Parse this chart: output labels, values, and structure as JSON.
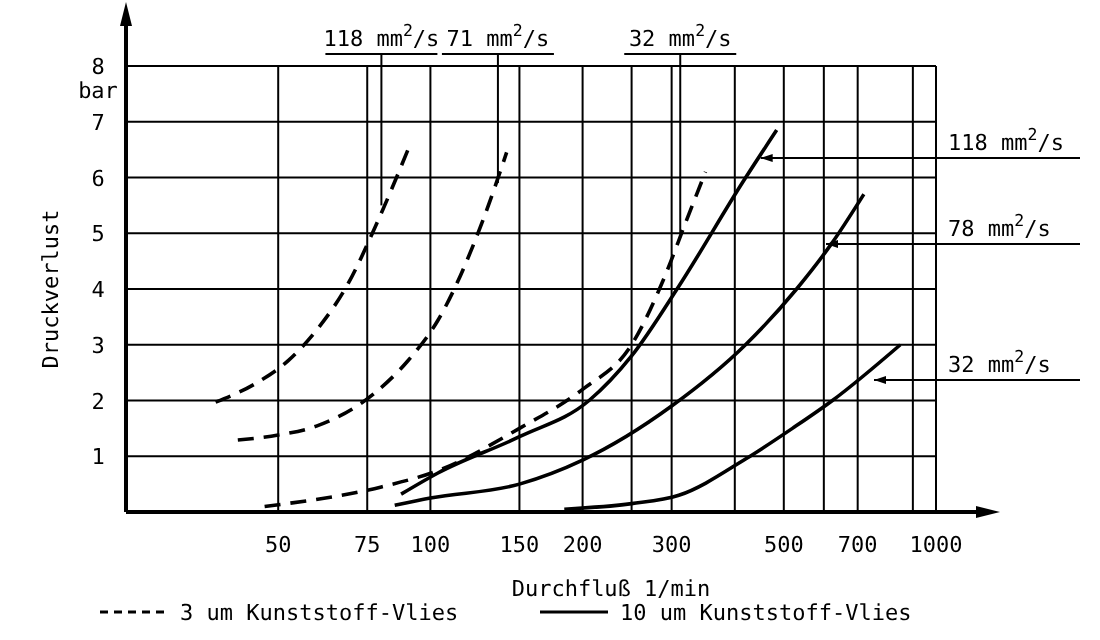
{
  "chart_data": {
    "type": "line",
    "xlabel": "Durchfluß 1/min",
    "ylabel": "Druckverlust",
    "log": "x",
    "grid": true,
    "legend": "bottom",
    "marker": "none",
    "xlim": [
      25,
      1000
    ],
    "ylim": [
      0,
      8
    ],
    "xticks": [
      50,
      75,
      100,
      150,
      200,
      {
        "value": 250,
        "label": null
      },
      300,
      {
        "value": 400,
        "label": null
      },
      500,
      {
        "value": 600,
        "label": null
      },
      700,
      {
        "value": 900,
        "label": null
      },
      1000
    ],
    "yticks": [
      1,
      2,
      3,
      4,
      5,
      6,
      7,
      {
        "value": 8,
        "label": "8 bar"
      }
    ],
    "series": [
      {
        "name": "3 um Kunststoff-Vlies",
        "color": "#000000",
        "line_style": "dashed",
        "x": [
          37.6,
          45,
          52.4,
          60,
          68.3,
          78.8,
          90.5
        ],
        "values": [
          1.97,
          2.3,
          2.72,
          3.3,
          4.05,
          5.23,
          6.52
        ]
      },
      {
        "color": "#000000",
        "line_style": "dashed",
        "x": [
          41.6,
          50,
          59.5,
          77,
          90,
          103.5,
          127,
          141.5
        ],
        "values": [
          1.29,
          1.38,
          1.54,
          2.11,
          2.7,
          3.44,
          5.23,
          6.45
        ]
      },
      {
        "color": "#000000",
        "line_style": "dashed",
        "x": [
          47,
          80,
          104,
          150,
          200,
          250,
          290,
          320,
          350
        ],
        "values": [
          0.1,
          0.45,
          0.75,
          1.5,
          2.2,
          3.0,
          4.2,
          5.2,
          6.1
        ]
      },
      {
        "name": "10 um Kunststoff-Vlies",
        "color": "#000000",
        "line_style": "solid",
        "x": [
          87.5,
          103.5,
          150,
          206,
          250,
          310,
          417,
          484
        ],
        "values": [
          0.32,
          0.7,
          1.35,
          2.0,
          2.8,
          4.05,
          5.95,
          6.85
        ]
      },
      {
        "color": "#000000",
        "line_style": "solid",
        "x": [
          85,
          100,
          150,
          200,
          300,
          420,
          530,
          620,
          720
        ],
        "values": [
          0.12,
          0.25,
          0.5,
          0.93,
          1.9,
          3.0,
          4.0,
          4.8,
          5.7
        ]
      },
      {
        "color": "#000000",
        "line_style": "solid",
        "x": [
          184,
          250,
          310,
          420,
          520,
          624,
          850
        ],
        "values": [
          0.05,
          0.15,
          0.3,
          0.95,
          1.5,
          2.0,
          3.0
        ]
      }
    ],
    "annotations": [
      {
        "text": "118 mm$^{2}$/s",
        "x": 80,
        "y": 5.5
      },
      {
        "text": "71 mm$^{2}$/s",
        "x": 136,
        "y": 5.9
      },
      {
        "text": "32 mm$^{2}$/s",
        "x": 312,
        "y": 5.0
      },
      {
        "text": "118 mm$^{2}$/s",
        "x": 450,
        "y": 6.35
      },
      "78 mm$^{2}$/s",
      "32 mm$^{2}$/s"
    ]
  }
}
